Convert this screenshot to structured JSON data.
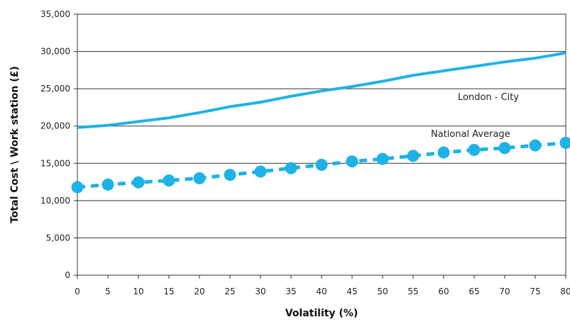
{
  "chart_data": {
    "type": "line",
    "xlabel": "Volatility (%)",
    "ylabel": "Total Cost \\ Work station (£)",
    "x": [
      0,
      5,
      10,
      15,
      20,
      25,
      30,
      35,
      40,
      45,
      50,
      55,
      60,
      65,
      70,
      75,
      80
    ],
    "x_tick_labels": [
      "0",
      "5",
      "10",
      "15",
      "20",
      "25",
      "30",
      "35",
      "40",
      "45",
      "50",
      "55",
      "60",
      "65",
      "70",
      "75",
      "80"
    ],
    "y_tick_labels": [
      "0",
      "5,000",
      "10,000",
      "15,000",
      "20,000",
      "25,000",
      "30,000",
      "35,000"
    ],
    "ylim": [
      0,
      35000
    ],
    "xlim": [
      0,
      80
    ],
    "grid": "horizontal",
    "series": [
      {
        "name": "London - City",
        "style": "solid",
        "color": "#1fb2e6",
        "values": [
          19800,
          20100,
          20600,
          21100,
          21800,
          22600,
          23200,
          24000,
          24700,
          25300,
          26000,
          26800,
          27400,
          28000,
          28600,
          29100,
          29800
        ]
      },
      {
        "name": "National Average",
        "style": "dashed-circle-markers",
        "color": "#1fb2e6",
        "values": [
          11800,
          12150,
          12450,
          12700,
          13000,
          13450,
          13900,
          14350,
          14800,
          15250,
          15600,
          16000,
          16450,
          16800,
          17050,
          17400,
          17750
        ]
      }
    ]
  }
}
